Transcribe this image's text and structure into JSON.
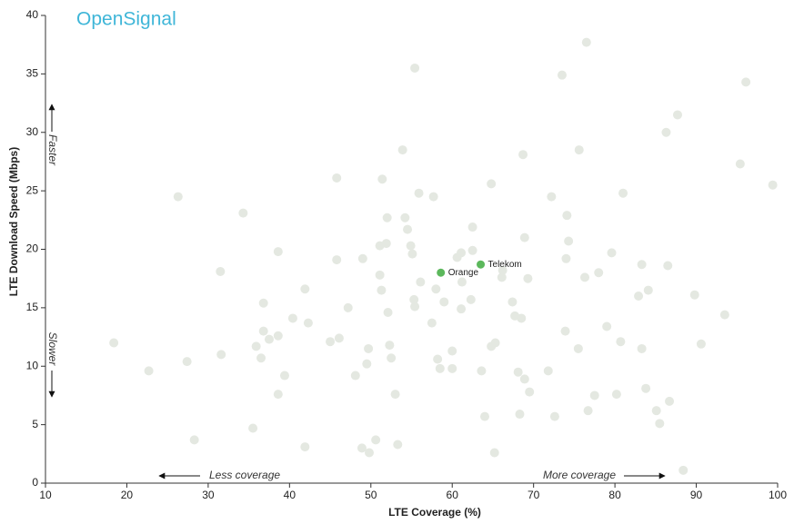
{
  "chart_data": {
    "type": "scatter",
    "logo": "OpenSignal",
    "xlabel": "LTE Coverage (%)",
    "ylabel": "LTE Download Speed (Mbps)",
    "annotations": [
      "Faster",
      "Slower",
      "Less coverage",
      "More coverage"
    ],
    "xlim": [
      10,
      100
    ],
    "xticks": [
      10,
      20,
      30,
      40,
      50,
      60,
      70,
      80,
      90,
      100
    ],
    "ylim": [
      0,
      40
    ],
    "yticks": [
      0,
      5,
      10,
      15,
      20,
      25,
      30,
      35,
      40
    ],
    "grid": false,
    "series": [
      {
        "color": "#e4e8e1",
        "x": [
          76.5,
          73.5,
          55.4,
          96.1,
          87.7,
          86.3,
          75.6,
          68.7,
          53.9,
          95.4,
          99.4,
          51.4,
          45.8,
          26.3,
          55.9,
          57.7,
          64.8,
          72.2,
          81.0,
          74.1,
          54.2,
          52.0,
          34.3,
          54.5,
          62.5,
          68.9,
          74.3,
          38.6,
          51.1,
          51.9,
          54.9,
          61.1,
          62.5,
          79.6,
          74.0,
          45.8,
          49.0,
          55.1,
          60.6,
          31.5,
          83.3,
          86.5,
          66.2,
          66.1,
          51.1,
          56.1,
          58.0,
          61.2,
          69.3,
          76.3,
          78.0,
          41.9,
          51.3,
          84.1,
          82.9,
          67.4,
          89.8,
          36.8,
          47.2,
          55.3,
          59.0,
          62.3,
          55.4,
          61.1,
          52.1,
          68.5,
          67.7,
          40.4,
          42.3,
          57.5,
          93.5,
          73.9,
          79.0,
          36.8,
          38.6,
          46.1,
          45.0,
          37.5,
          65.3,
          80.7,
          35.9,
          75.5,
          83.3,
          90.6,
          49.7,
          52.3,
          60.0,
          64.8,
          36.5,
          52.5,
          58.2,
          27.4,
          31.6,
          49.5,
          58.5,
          60.0,
          63.6,
          68.1,
          71.8,
          48.1,
          39.4,
          68.9,
          83.8,
          86.7,
          38.6,
          69.5,
          53.0,
          76.7,
          85.1,
          68.3,
          64.0,
          72.6,
          35.5,
          28.3,
          50.6,
          53.3,
          41.9,
          48.9,
          49.8,
          65.2,
          88.4,
          85.5,
          22.7,
          18.4,
          80.2,
          77.5
        ],
        "values": [
          37.7,
          34.9,
          35.5,
          34.3,
          31.5,
          30.0,
          28.5,
          28.1,
          28.5,
          27.3,
          25.5,
          26.0,
          26.1,
          24.5,
          24.8,
          24.5,
          25.6,
          24.5,
          24.8,
          22.9,
          22.7,
          22.7,
          23.1,
          21.7,
          21.9,
          21.0,
          20.7,
          19.8,
          20.3,
          20.5,
          20.3,
          19.7,
          19.9,
          19.7,
          19.2,
          19.1,
          19.2,
          19.6,
          19.3,
          18.1,
          18.7,
          18.6,
          18.2,
          17.6,
          17.8,
          17.2,
          16.6,
          17.2,
          17.5,
          17.6,
          18.0,
          16.6,
          16.5,
          16.5,
          16.0,
          15.5,
          16.1,
          15.4,
          15.0,
          15.7,
          15.5,
          15.7,
          15.1,
          14.9,
          14.6,
          14.1,
          14.3,
          14.1,
          13.7,
          13.7,
          14.4,
          13.0,
          13.4,
          13.0,
          12.6,
          12.4,
          12.1,
          12.3,
          12.0,
          12.1,
          11.7,
          11.5,
          11.5,
          11.9,
          11.5,
          11.8,
          11.3,
          11.7,
          10.7,
          10.7,
          10.6,
          10.4,
          11.0,
          10.2,
          9.8,
          9.8,
          9.6,
          9.5,
          9.6,
          9.2,
          9.2,
          8.9,
          8.1,
          7.0,
          7.6,
          7.8,
          7.6,
          6.2,
          6.2,
          5.9,
          5.7,
          5.7,
          4.7,
          3.7,
          3.7,
          3.3,
          3.1,
          3.0,
          2.6,
          2.6,
          1.1,
          5.1,
          9.6,
          12.0,
          7.6,
          7.5
        ]
      },
      {
        "name": "Orange",
        "color": "#5cb85c",
        "x": [
          58.6
        ],
        "values": [
          18.0
        ]
      },
      {
        "name": "Telekom",
        "color": "#5cb85c",
        "x": [
          63.5
        ],
        "values": [
          18.7
        ]
      }
    ]
  }
}
